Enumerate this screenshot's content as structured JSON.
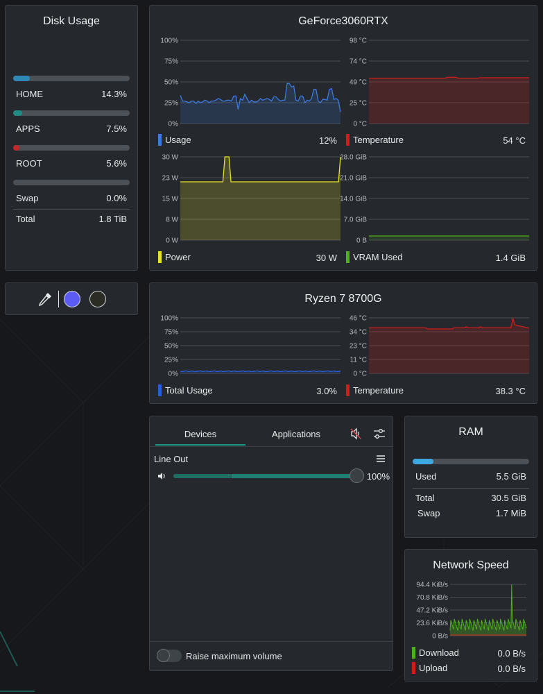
{
  "disk": {
    "title": "Disk Usage",
    "items": [
      {
        "label": "HOME",
        "value": "14.3%",
        "pct": 0.143,
        "color": "#2e88b5"
      },
      {
        "label": "APPS",
        "value": "7.5%",
        "pct": 0.075,
        "color": "#1f8a83"
      },
      {
        "label": "ROOT",
        "value": "5.6%",
        "pct": 0.056,
        "color": "#c7262b"
      },
      {
        "label": "Swap",
        "value": "0.0%",
        "pct": 0.0,
        "color": "#2e88b5"
      }
    ],
    "total_label": "Total",
    "total_value": "1.8 TiB"
  },
  "picker": {
    "icon": "color-picker-icon",
    "color1": "#5c5cf5",
    "color2": "#2b2d24"
  },
  "gpu": {
    "title": "GeForce3060RTX",
    "usage": {
      "label": "Usage",
      "value": "12%",
      "color": "#3d7ae0",
      "ticks": [
        "100%",
        "75%",
        "50%",
        "25%",
        "0%"
      ]
    },
    "temp": {
      "label": "Temperature",
      "value": "54 °C",
      "color": "#d11c1c",
      "ticks": [
        "98 °C",
        "74 °C",
        "49 °C",
        "25 °C",
        "0 °C"
      ]
    },
    "power": {
      "label": "Power",
      "value": "30 W",
      "color": "#e6e326",
      "ticks": [
        "30 W",
        "23 W",
        "15 W",
        "8 W",
        "0 W"
      ]
    },
    "vram": {
      "label": "VRAM Used",
      "value": "1.4 GiB",
      "color": "#4fb01c",
      "ticks": [
        "28.0 GiB",
        "21.0 GiB",
        "14.0 GiB",
        "7.0 GiB",
        "0 B"
      ]
    }
  },
  "cpu": {
    "title": "Ryzen 7 8700G",
    "usage": {
      "label": "Total Usage",
      "value": "3.0%",
      "color": "#2a5fdc",
      "ticks": [
        "100%",
        "75%",
        "50%",
        "25%",
        "0%"
      ]
    },
    "temp": {
      "label": "Temperature",
      "value": "38.3 °C",
      "color": "#d11c1c",
      "ticks": [
        "46 °C",
        "34 °C",
        "23 °C",
        "11 °C",
        "0 °C"
      ]
    }
  },
  "audio": {
    "tabs": [
      "Devices",
      "Applications"
    ],
    "active_tab": 0,
    "device": "Line Out",
    "volume": "100%",
    "volume_level": 1.0,
    "raise_label": "Raise maximum volume",
    "icons": {
      "mute": "speaker-muted-icon",
      "config": "settings-sliders-icon",
      "menu": "hamburger-menu-icon",
      "speaker": "speaker-icon"
    }
  },
  "ram": {
    "title": "RAM",
    "used_label": "Used",
    "used_value": "5.5 GiB",
    "used_pct": 0.18,
    "color": "#3da8e0",
    "total_label": "Total",
    "total_value": "30.5 GiB",
    "swap_label": "Swap",
    "swap_value": "1.7 MiB"
  },
  "net": {
    "title": "Network Speed",
    "ticks": [
      "94.4 KiB/s",
      "70.8 KiB/s",
      "47.2 KiB/s",
      "23.6 KiB/s",
      "0 B/s"
    ],
    "download": {
      "label": "Download",
      "value": "0.0 B/s",
      "color": "#4fb01c"
    },
    "upload": {
      "label": "Upload",
      "value": "0.0 B/s",
      "color": "#d11c1c"
    }
  }
}
